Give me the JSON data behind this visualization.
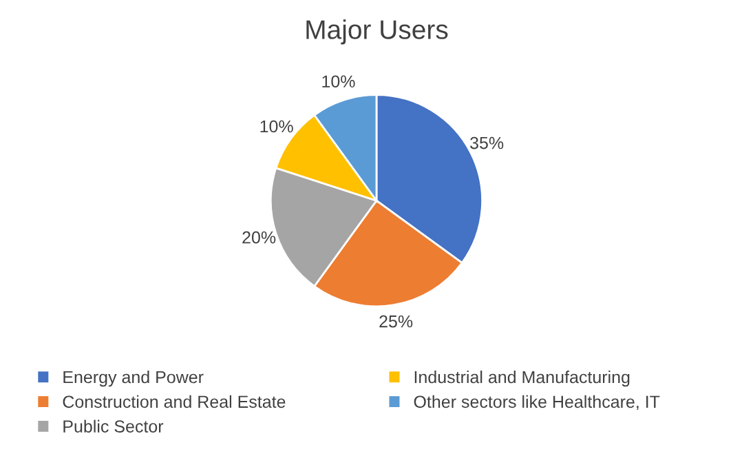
{
  "chart_data": {
    "type": "pie",
    "title": "Major Users",
    "categories": [
      "Energy and Power",
      "Construction and Real Estate",
      "Public Sector",
      "Industrial and Manufacturing",
      "Other sectors like Healthcare, IT"
    ],
    "values": [
      35,
      25,
      20,
      10,
      10
    ],
    "value_labels": [
      "35%",
      "25%",
      "20%",
      "10%",
      "10%"
    ],
    "colors": [
      "#4472c4",
      "#ed7d31",
      "#a5a5a5",
      "#ffc000",
      "#5b9bd5"
    ],
    "legend": "bottom"
  }
}
